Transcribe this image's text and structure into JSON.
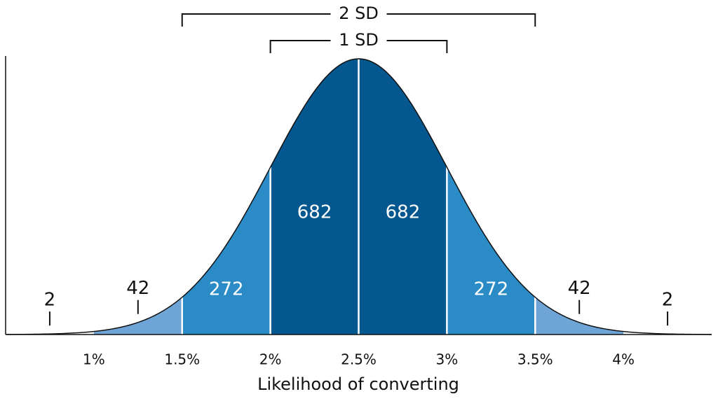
{
  "chart_data": {
    "type": "normal",
    "x_label": "Likelihood of converting",
    "mean": 2.5,
    "sd": 0.5,
    "xlim": [
      0.5,
      4.5
    ],
    "xticks": [
      {
        "value": 1,
        "label": "1%"
      },
      {
        "value": 1.5,
        "label": "1.5%"
      },
      {
        "value": 2,
        "label": "2%"
      },
      {
        "value": 2.5,
        "label": "2.5%"
      },
      {
        "value": 3,
        "label": "3%"
      },
      {
        "value": 3.5,
        "label": "3.5%"
      },
      {
        "value": 4,
        "label": "4%"
      }
    ],
    "regions": [
      {
        "from": 0.5,
        "to": 1,
        "value": 2,
        "color": "#ffffff",
        "label_style": "outside"
      },
      {
        "from": 1,
        "to": 1.5,
        "value": 42,
        "color": "#6fa5d6",
        "label_style": "outside"
      },
      {
        "from": 1.5,
        "to": 2,
        "value": 272,
        "color": "#2b8bc6",
        "label_style": "inside"
      },
      {
        "from": 2,
        "to": 2.5,
        "value": 682,
        "color": "#05578f",
        "label_style": "inside"
      },
      {
        "from": 2.5,
        "to": 3,
        "value": 682,
        "color": "#05578f",
        "label_style": "inside"
      },
      {
        "from": 3,
        "to": 3.5,
        "value": 272,
        "color": "#2b8bc6",
        "label_style": "inside"
      },
      {
        "from": 3.5,
        "to": 4,
        "value": 42,
        "color": "#6fa5d6",
        "label_style": "outside"
      },
      {
        "from": 4,
        "to": 4.5,
        "value": 2,
        "color": "#ffffff",
        "label_style": "outside"
      }
    ],
    "annotations": [
      {
        "text": "2 SD",
        "from": 1.5,
        "to": 3.5
      },
      {
        "text": "1 SD",
        "from": 2,
        "to": 3
      }
    ]
  }
}
